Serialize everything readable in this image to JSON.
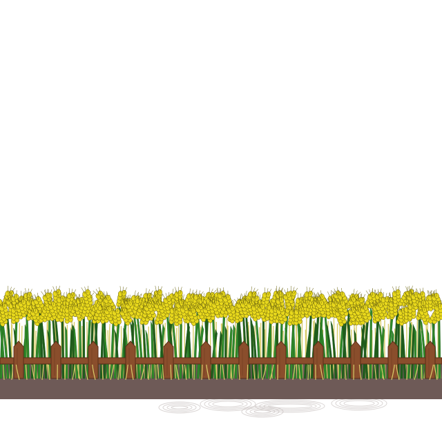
{
  "scene": {
    "background_color": "#ffffff",
    "elements": [
      "wheat-field",
      "wooden-fence",
      "soil-strip",
      "soil-shadow"
    ],
    "colors": {
      "wheat_yellow": "#e8d81c",
      "wheat_outline": "#6b6410",
      "stem_green": "#2f8a2a",
      "stem_dark": "#1f5c1c",
      "stalk_straw": "#d8cc6a",
      "fence_brown": "#8a4e2c",
      "fence_dark": "#5a2f18",
      "soil_brown": "#6e5a57",
      "soil_shadow": "#c9c2c1"
    }
  }
}
